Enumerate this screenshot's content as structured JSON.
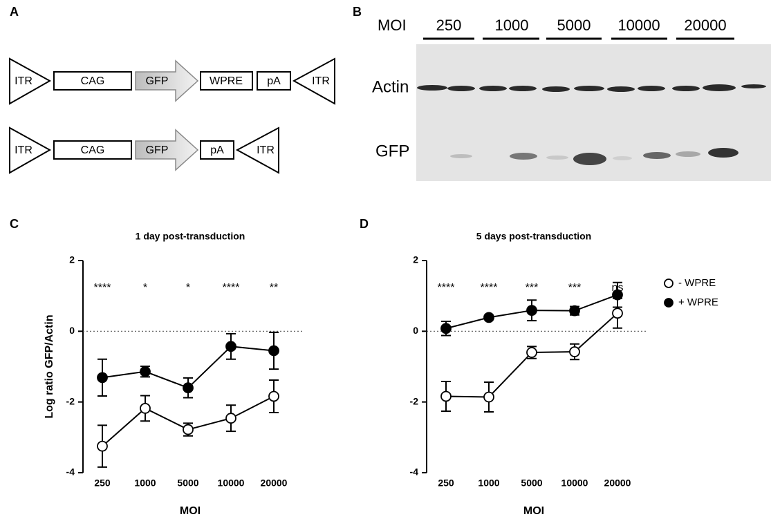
{
  "panel_a": {
    "label": "A",
    "constructs": [
      [
        "ITR",
        "CAG",
        "GFP",
        "WPRE",
        "pA",
        "ITR"
      ],
      [
        "ITR",
        "CAG",
        "GFP",
        "pA",
        "ITR"
      ]
    ]
  },
  "panel_b": {
    "label": "B",
    "moi_label": "MOI",
    "lanes": [
      "250",
      "1000",
      "5000",
      "10000",
      "20000"
    ],
    "rows": [
      "Actin",
      "GFP"
    ]
  },
  "chart_data": [
    {
      "type": "line",
      "panel": "C",
      "title": "1 day post-transduction",
      "xlabel": "MOI",
      "ylabel": "Log ratio GFP/Actin",
      "categories": [
        "250",
        "1000",
        "5000",
        "10000",
        "20000"
      ],
      "ylim": [
        -4,
        2
      ],
      "yticks": [
        -4,
        -2,
        0,
        2
      ],
      "hline": 0,
      "series": [
        {
          "color": "#000000",
          "marker": "open",
          "values": [
            -3.25,
            -2.18,
            -2.78,
            -2.46,
            -1.84
          ],
          "errors": [
            0.59,
            0.36,
            0.18,
            0.37,
            0.46
          ]
        },
        {
          "color": "#000000",
          "marker": "filled",
          "values": [
            -1.31,
            -1.14,
            -1.6,
            -0.43,
            -0.55
          ],
          "errors": [
            0.52,
            0.15,
            0.28,
            0.36,
            0.52
          ]
        }
      ],
      "annotations": [
        "****",
        "*",
        "*",
        "****",
        "**"
      ]
    },
    {
      "type": "line",
      "panel": "D",
      "title": "5 days post-transduction",
      "xlabel": "MOI",
      "categories": [
        "250",
        "1000",
        "5000",
        "10000",
        "20000"
      ],
      "ylim": [
        -4,
        2
      ],
      "yticks": [
        -4,
        -2,
        0,
        2
      ],
      "hline": 0,
      "legend": "right",
      "series": [
        {
          "name": "- WPRE",
          "color": "#000000",
          "marker": "open",
          "values": [
            -1.84,
            -1.86,
            -0.6,
            -0.58,
            0.51
          ],
          "errors": [
            0.42,
            0.42,
            0.17,
            0.22,
            0.42
          ]
        },
        {
          "name": "+ WPRE",
          "color": "#000000",
          "marker": "filled",
          "values": [
            0.08,
            0.39,
            0.59,
            0.58,
            1.03
          ],
          "errors": [
            0.2,
            0.06,
            0.29,
            0.12,
            0.35
          ]
        }
      ],
      "annotations": [
        "****",
        "****",
        "***",
        "***",
        "ns"
      ]
    }
  ]
}
